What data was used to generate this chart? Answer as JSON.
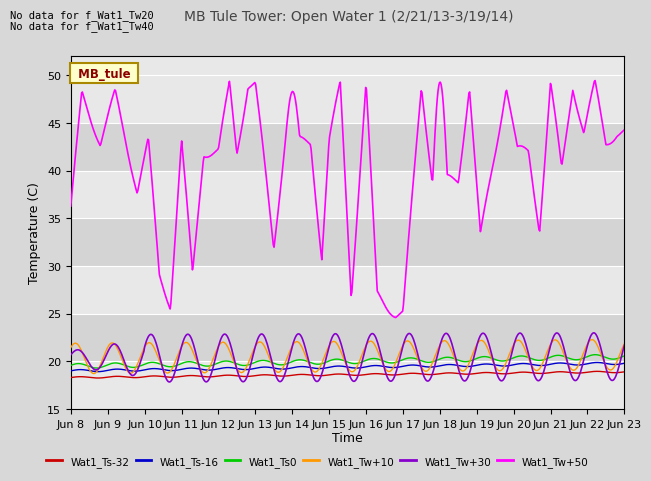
{
  "title": "MB Tule Tower: Open Water 1 (2/21/13-3/19/14)",
  "xlabel": "Time",
  "ylabel": "Temperature (C)",
  "ylim": [
    15,
    52
  ],
  "yticks": [
    15,
    20,
    25,
    30,
    35,
    40,
    45,
    50
  ],
  "note1": "No data for f_Wat1_Tw20",
  "note2": "No data for f_Wat1_Tw40",
  "legend_label": "MB_tule",
  "series_labels": [
    "Wat1_Ts-32",
    "Wat1_Ts-16",
    "Wat1_Ts0",
    "Wat1_Tw+10",
    "Wat1_Tw+30",
    "Wat1_Tw+50"
  ],
  "series_colors": [
    "#cc0000",
    "#0000cc",
    "#00cc00",
    "#ff9900",
    "#8800cc",
    "#ff00ff"
  ],
  "bg_color": "#d8d8d8",
  "plot_bg": "#e8e8e8",
  "strip_color": "#d0d0d0",
  "xlim_days": [
    0,
    15
  ],
  "xtick_labels": [
    "Jun 8",
    "Jun 9",
    "Jun 10",
    "Jun 11",
    "Jun 12",
    "Jun 13",
    "Jun 14",
    "Jun 15",
    "Jun 16",
    "Jun 17",
    "Jun 18",
    "Jun 19",
    "Jun 20",
    "Jun 21",
    "Jun 22",
    "Jun 23"
  ],
  "xtick_positions": [
    0,
    1,
    2,
    3,
    4,
    5,
    6,
    7,
    8,
    9,
    10,
    11,
    12,
    13,
    14,
    15
  ]
}
